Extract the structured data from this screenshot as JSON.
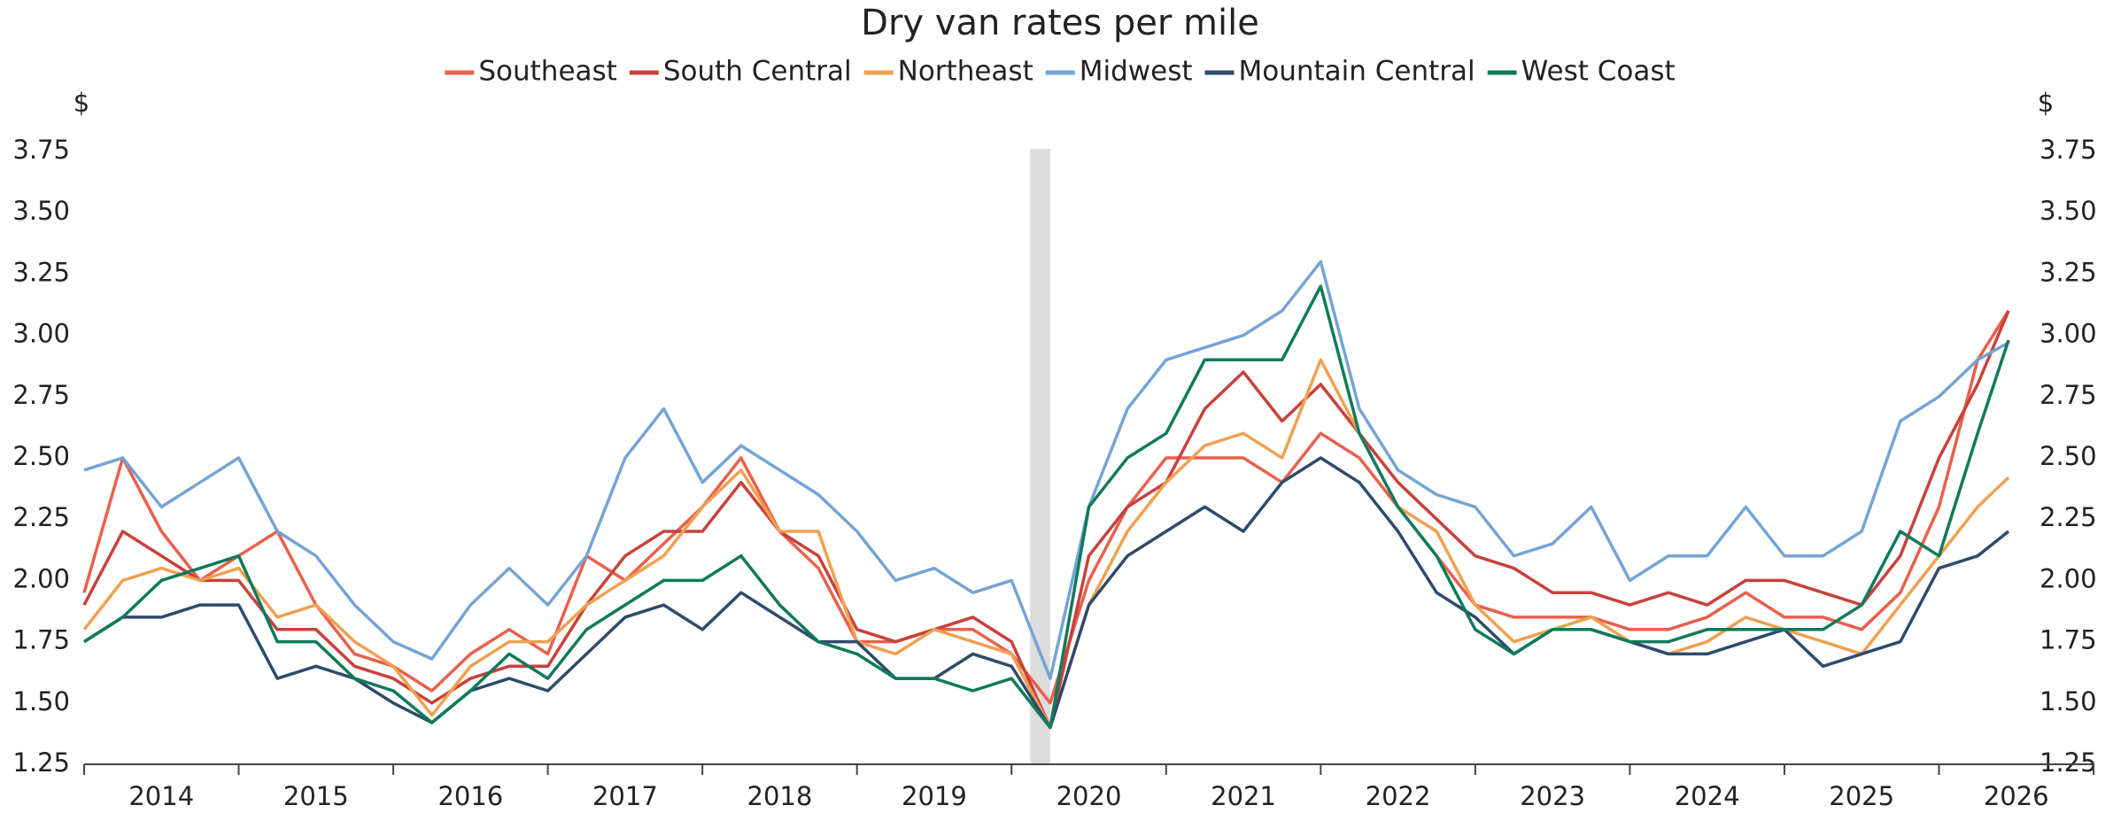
{
  "chart_data": {
    "type": "line",
    "title": "Dry van rates per mile",
    "y_unit": "$",
    "x": [
      2014,
      2014.25,
      2014.5,
      2014.75,
      2015,
      2015.25,
      2015.5,
      2015.75,
      2016,
      2016.25,
      2016.5,
      2016.75,
      2017,
      2017.25,
      2017.5,
      2017.75,
      2018,
      2018.25,
      2018.5,
      2018.75,
      2019,
      2019.25,
      2019.5,
      2019.75,
      2020,
      2020.25,
      2020.5,
      2020.75,
      2021,
      2021.25,
      2021.5,
      2021.75,
      2022,
      2022.25,
      2022.5,
      2022.75,
      2023,
      2023.25,
      2023.5,
      2023.75,
      2024,
      2024.25,
      2024.5,
      2024.75,
      2025,
      2025.25,
      2025.5,
      2025.75,
      2026,
      2026.25,
      2026.45
    ],
    "series": [
      {
        "name": "Southeast",
        "color": "#e8604c",
        "values": [
          1.95,
          2.5,
          2.2,
          2.0,
          2.1,
          2.2,
          1.9,
          1.7,
          1.65,
          1.55,
          1.7,
          1.8,
          1.7,
          2.1,
          2.0,
          2.15,
          2.3,
          2.5,
          2.2,
          2.05,
          1.75,
          1.75,
          1.8,
          1.8,
          1.7,
          1.5,
          2.0,
          2.3,
          2.5,
          2.5,
          2.5,
          2.4,
          2.6,
          2.5,
          2.3,
          2.1,
          1.9,
          1.85,
          1.85,
          1.85,
          1.8,
          1.8,
          1.85,
          1.95,
          1.85,
          1.85,
          1.8,
          1.95,
          2.3,
          2.9,
          3.1
        ]
      },
      {
        "name": "South Central",
        "color": "#c8413b",
        "values": [
          1.9,
          2.2,
          2.1,
          2.0,
          2.0,
          1.8,
          1.8,
          1.65,
          1.6,
          1.5,
          1.6,
          1.65,
          1.65,
          1.9,
          2.1,
          2.2,
          2.2,
          2.4,
          2.2,
          2.1,
          1.8,
          1.75,
          1.8,
          1.85,
          1.75,
          1.4,
          2.1,
          2.3,
          2.4,
          2.7,
          2.85,
          2.65,
          2.8,
          2.6,
          2.4,
          2.25,
          2.1,
          2.05,
          1.95,
          1.95,
          1.9,
          1.95,
          1.9,
          2.0,
          2.0,
          1.95,
          1.9,
          2.1,
          2.5,
          2.8,
          3.1
        ]
      },
      {
        "name": "Northeast",
        "color": "#f0a050",
        "values": [
          1.8,
          2.0,
          2.05,
          2.0,
          2.05,
          1.85,
          1.9,
          1.75,
          1.65,
          1.45,
          1.65,
          1.75,
          1.75,
          1.9,
          2.0,
          2.1,
          2.3,
          2.45,
          2.2,
          2.2,
          1.75,
          1.7,
          1.8,
          1.75,
          1.7,
          1.4,
          1.9,
          2.2,
          2.4,
          2.55,
          2.6,
          2.5,
          2.9,
          2.6,
          2.3,
          2.2,
          1.9,
          1.75,
          1.8,
          1.85,
          1.75,
          1.7,
          1.75,
          1.85,
          1.8,
          1.75,
          1.7,
          1.9,
          2.1,
          2.3,
          2.42
        ]
      },
      {
        "name": "Midwest",
        "color": "#74a4d4",
        "values": [
          2.45,
          2.5,
          2.3,
          2.4,
          2.5,
          2.2,
          2.1,
          1.9,
          1.75,
          1.68,
          1.9,
          2.05,
          1.9,
          2.1,
          2.5,
          2.7,
          2.4,
          2.55,
          2.45,
          2.35,
          2.2,
          2.0,
          2.05,
          1.95,
          2.0,
          1.6,
          2.3,
          2.7,
          2.9,
          2.95,
          3.0,
          3.1,
          3.3,
          2.7,
          2.45,
          2.35,
          2.3,
          2.1,
          2.15,
          2.3,
          2.0,
          2.1,
          2.1,
          2.3,
          2.1,
          2.1,
          2.2,
          2.65,
          2.75,
          2.9,
          2.97
        ]
      },
      {
        "name": "Mountain Central",
        "color": "#2e4a6b",
        "values": [
          1.75,
          1.85,
          1.85,
          1.9,
          1.9,
          1.6,
          1.65,
          1.6,
          1.5,
          1.42,
          1.55,
          1.6,
          1.55,
          1.7,
          1.85,
          1.9,
          1.8,
          1.95,
          1.85,
          1.75,
          1.75,
          1.6,
          1.6,
          1.7,
          1.65,
          1.4,
          1.9,
          2.1,
          2.2,
          2.3,
          2.2,
          2.4,
          2.5,
          2.4,
          2.2,
          1.95,
          1.85,
          1.7,
          1.8,
          1.8,
          1.75,
          1.7,
          1.7,
          1.75,
          1.8,
          1.65,
          1.7,
          1.75,
          2.05,
          2.1,
          2.2
        ]
      },
      {
        "name": "West Coast",
        "color": "#0e7a5a",
        "values": [
          1.75,
          1.85,
          2.0,
          2.05,
          2.1,
          1.75,
          1.75,
          1.6,
          1.55,
          1.42,
          1.55,
          1.7,
          1.6,
          1.8,
          1.9,
          2.0,
          2.0,
          2.1,
          1.9,
          1.75,
          1.7,
          1.6,
          1.6,
          1.55,
          1.6,
          1.4,
          2.3,
          2.5,
          2.6,
          2.9,
          2.9,
          2.9,
          3.2,
          2.6,
          2.3,
          2.1,
          1.8,
          1.7,
          1.8,
          1.8,
          1.75,
          1.75,
          1.8,
          1.8,
          1.8,
          1.8,
          1.9,
          2.2,
          2.1,
          2.6,
          2.98
        ]
      }
    ],
    "xlim": [
      2014,
      2027
    ],
    "xticks": [
      2014,
      2015,
      2016,
      2017,
      2018,
      2019,
      2020,
      2021,
      2022,
      2023,
      2024,
      2025,
      2026
    ],
    "ylim": [
      1.25,
      3.75
    ],
    "yticks": [
      1.25,
      {
        "value": 1.5,
        "label": "1.50"
      },
      1.75,
      {
        "value": 2.0,
        "label": "2.00"
      },
      2.25,
      {
        "value": 2.5,
        "label": "2.50"
      },
      2.75,
      {
        "value": 3.0,
        "label": "3.00"
      },
      3.25,
      {
        "value": 3.5,
        "label": "3.50"
      },
      3.75
    ],
    "shaded_x_range": [
      2020.12,
      2020.25
    ],
    "shade_color": "#dcdcdc",
    "legend": "top",
    "grid": false
  }
}
